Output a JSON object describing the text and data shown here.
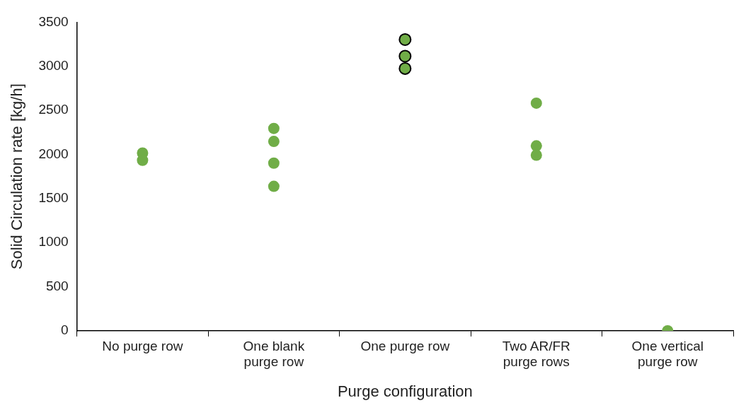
{
  "chart_data": {
    "type": "scatter",
    "xlabel": "Purge configuration",
    "ylabel": "Solid Circulation rate [kg/h]",
    "categories": [
      "No purge row",
      "One blank purge row",
      "One purge row",
      "Two AR/FR purge rows",
      "One vertical purge row"
    ],
    "series": [
      {
        "color": "#70ad47",
        "x": [
          "No purge row",
          "No purge row",
          "One blank purge row",
          "One blank purge row",
          "One blank purge row",
          "One blank purge row",
          "Two AR/FR purge rows",
          "Two AR/FR purge rows",
          "Two AR/FR purge rows",
          "One vertical purge row"
        ],
        "values": [
          2016,
          1934,
          2295,
          2148,
          1902,
          1639,
          2582,
          2098,
          1992,
          0
        ]
      },
      {
        "color": "#70ad47",
        "x": [
          "One purge row",
          "One purge row",
          "One purge row",
          "One purge row"
        ],
        "values": [
          3303,
          3115,
          null,
          2975
        ]
      }
    ],
    "ylim": [
      0,
      3500
    ],
    "yticks": [
      0,
      500,
      1000,
      1500,
      2000,
      2500,
      3000,
      3500
    ],
    "grid": false,
    "legend": false,
    "marker": "circle"
  }
}
